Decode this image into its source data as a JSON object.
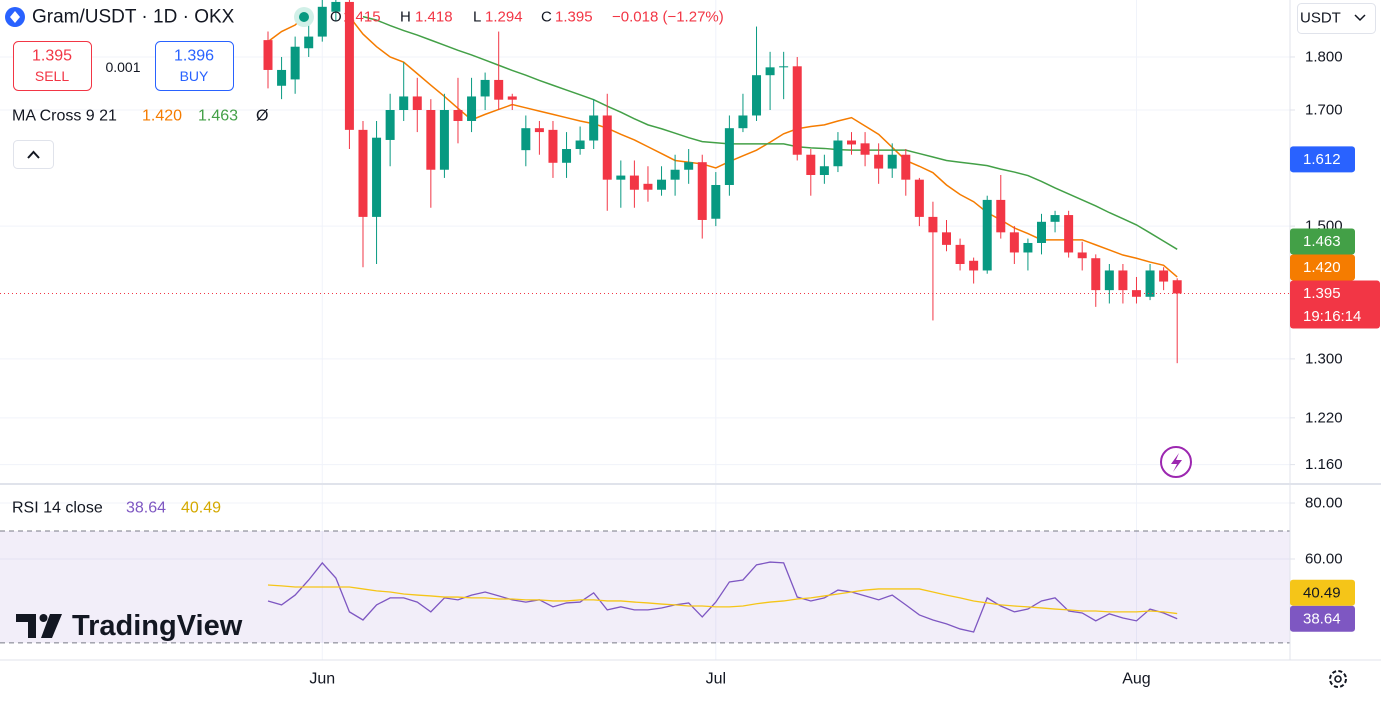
{
  "header": {
    "symbol": "Gram/USDT · 1D · OKX",
    "ohlc": [
      {
        "key": "O",
        "value": "1.415"
      },
      {
        "key": "H",
        "value": "1.418"
      },
      {
        "key": "L",
        "value": "1.294"
      },
      {
        "key": "C",
        "value": "1.395"
      }
    ],
    "change": "−0.018 (−1.27%)"
  },
  "trade": {
    "sell_price": "1.395",
    "sell": "SELL",
    "spread": "0.001",
    "buy_price": "1.396",
    "buy": "BUY"
  },
  "currency": "USDT",
  "branding": "TradingView",
  "chart_data": [
    {
      "type": "candlestick",
      "log_scale": true,
      "grid": true,
      "indicator_label": "MA Cross 9 21",
      "indicator_suffix": "Ø",
      "up_color": "#089981",
      "down_color": "#f23645",
      "categories": [
        null,
        null,
        null,
        null,
        "Jun",
        null,
        null,
        null,
        null,
        null,
        null,
        null,
        null,
        null,
        null,
        null,
        null,
        null,
        null,
        null,
        null,
        null,
        null,
        null,
        null,
        null,
        null,
        null,
        null,
        null,
        null,
        null,
        null,
        "Jul",
        null,
        null,
        null,
        null,
        null,
        null,
        null,
        null,
        null,
        null,
        null,
        null,
        null,
        null,
        null,
        null,
        null,
        null,
        null,
        null,
        null,
        null,
        null,
        null,
        null,
        null,
        null,
        null,
        null,
        null,
        "Aug",
        null,
        null,
        null
      ],
      "open": [
        1.833,
        1.745,
        1.757,
        1.817,
        1.84,
        1.89,
        1.91,
        1.664,
        1.515,
        1.646,
        1.7,
        1.725,
        1.7,
        1.594,
        1.7,
        1.68,
        1.725,
        1.756,
        1.725,
        1.628,
        1.667,
        1.664,
        1.606,
        1.63,
        1.645,
        1.69,
        1.577,
        1.584,
        1.57,
        1.56,
        1.577,
        1.594,
        1.607,
        1.512,
        1.568,
        1.667,
        1.69,
        1.765,
        1.78,
        1.782,
        1.62,
        1.585,
        1.6,
        1.645,
        1.64,
        1.62,
        1.596,
        1.62,
        1.577,
        1.515,
        1.49,
        1.47,
        1.445,
        1.43,
        1.543,
        1.49,
        1.458,
        1.473,
        1.507,
        1.518,
        1.458,
        1.449,
        1.4,
        1.43,
        1.4,
        1.39,
        1.43,
        1.415
      ],
      "high": [
        1.85,
        1.8,
        1.84,
        1.87,
        1.92,
        1.93,
        1.93,
        1.68,
        1.68,
        1.73,
        1.79,
        1.76,
        1.72,
        1.73,
        1.76,
        1.76,
        1.77,
        1.85,
        1.73,
        1.69,
        1.68,
        1.68,
        1.66,
        1.67,
        1.72,
        1.73,
        1.61,
        1.61,
        1.6,
        1.6,
        1.62,
        1.63,
        1.62,
        1.59,
        1.69,
        1.73,
        1.86,
        1.81,
        1.81,
        1.8,
        1.63,
        1.62,
        1.66,
        1.66,
        1.66,
        1.64,
        1.64,
        1.63,
        1.58,
        1.54,
        1.51,
        1.48,
        1.45,
        1.55,
        1.585,
        1.5,
        1.48,
        1.52,
        1.525,
        1.525,
        1.475,
        1.455,
        1.44,
        1.44,
        1.42,
        1.44,
        1.435,
        1.418
      ],
      "low": [
        1.74,
        1.72,
        1.73,
        1.8,
        1.83,
        1.87,
        1.63,
        1.435,
        1.44,
        1.6,
        1.68,
        1.66,
        1.53,
        1.58,
        1.64,
        1.66,
        1.7,
        1.7,
        1.7,
        1.6,
        1.62,
        1.58,
        1.58,
        1.62,
        1.63,
        1.525,
        1.53,
        1.53,
        1.54,
        1.55,
        1.55,
        1.57,
        1.48,
        1.5,
        1.55,
        1.66,
        1.68,
        1.7,
        1.72,
        1.61,
        1.55,
        1.57,
        1.59,
        1.62,
        1.6,
        1.57,
        1.58,
        1.55,
        1.5,
        1.355,
        1.46,
        1.43,
        1.41,
        1.425,
        1.48,
        1.44,
        1.43,
        1.455,
        1.49,
        1.45,
        1.43,
        1.375,
        1.38,
        1.38,
        1.38,
        1.385,
        1.4,
        1.294
      ],
      "close": [
        1.775,
        1.775,
        1.82,
        1.84,
        1.9,
        1.91,
        1.664,
        1.515,
        1.65,
        1.7,
        1.725,
        1.7,
        1.594,
        1.7,
        1.68,
        1.725,
        1.756,
        1.719,
        1.719,
        1.667,
        1.66,
        1.606,
        1.63,
        1.645,
        1.69,
        1.577,
        1.584,
        1.56,
        1.56,
        1.577,
        1.594,
        1.607,
        1.51,
        1.568,
        1.667,
        1.69,
        1.765,
        1.78,
        1.782,
        1.62,
        1.585,
        1.6,
        1.645,
        1.638,
        1.62,
        1.596,
        1.62,
        1.577,
        1.515,
        1.49,
        1.47,
        1.44,
        1.43,
        1.543,
        1.49,
        1.458,
        1.473,
        1.507,
        1.518,
        1.458,
        1.449,
        1.4,
        1.43,
        1.4,
        1.39,
        1.43,
        1.413,
        1.395
      ],
      "series": [
        {
          "color": "#f57c00",
          "values": [
            1.83,
            1.85,
            1.863,
            1.89,
            null,
            null,
            1.88,
            1.845,
            1.82,
            1.8,
            1.79,
            1.768,
            1.746,
            1.725,
            1.703,
            1.682,
            1.692,
            1.701,
            1.71,
            1.704,
            1.698,
            1.692,
            1.686,
            1.68,
            1.675,
            1.667,
            1.656,
            1.646,
            1.634,
            1.622,
            1.61,
            1.607,
            1.604,
            1.597,
            1.608,
            1.618,
            1.628,
            1.642,
            1.657,
            1.666,
            1.67,
            1.673,
            1.68,
            1.686,
            1.671,
            1.656,
            1.633,
            1.61,
            1.6,
            1.589,
            1.568,
            1.552,
            1.54,
            1.522,
            1.51,
            1.497,
            1.488,
            1.478,
            1.478,
            1.478,
            1.478,
            1.47,
            1.462,
            1.454,
            1.449,
            1.443,
            1.438,
            1.42
          ]
        },
        {
          "color": "#43a047",
          "values": [
            null,
            null,
            null,
            null,
            null,
            null,
            null,
            1.88,
            1.873,
            1.862,
            1.852,
            1.843,
            1.833,
            1.823,
            1.813,
            1.804,
            1.794,
            1.784,
            1.774,
            1.765,
            1.755,
            1.746,
            1.737,
            1.728,
            1.719,
            1.707,
            1.696,
            1.684,
            1.673,
            1.666,
            1.658,
            1.65,
            1.643,
            1.641,
            1.639,
            1.639,
            1.639,
            1.639,
            1.639,
            1.634,
            1.632,
            1.631,
            1.629,
            1.628,
            1.628,
            1.628,
            1.628,
            1.628,
            1.622,
            1.616,
            1.61,
            1.607,
            1.604,
            1.601,
            1.595,
            1.59,
            1.584,
            1.574,
            1.563,
            1.553,
            1.543,
            1.533,
            1.522,
            1.512,
            1.502,
            1.489,
            1.476,
            1.463
          ]
        }
      ],
      "ylim": [
        1.136,
        1.914
      ],
      "yticks": [
        {
          "value": 1.8,
          "label": "1.800"
        },
        {
          "value": 1.7,
          "label": "1.700"
        },
        {
          "value": 1.5,
          "label": "1.500"
        },
        {
          "value": 1.3,
          "label": "1.300"
        },
        {
          "value": 1.22,
          "label": "1.220"
        },
        {
          "value": 1.16,
          "label": "1.160"
        }
      ],
      "price_tags": [
        {
          "value": 1.612,
          "label": "1.612",
          "color": "#2962ff"
        },
        {
          "value": 1.463,
          "label": "1.463",
          "color": "#43a047"
        },
        {
          "value": 1.42,
          "label": "1.420",
          "color": "#f57c00"
        },
        {
          "value": 1.395,
          "label": "1.395",
          "color": "#f23645",
          "countdown": "19:16:14"
        }
      ]
    },
    {
      "type": "line",
      "label": "RSI 14 close",
      "grid": true,
      "band_color": "#7e57c2",
      "bands": [
        70,
        30
      ],
      "series": [
        {
          "color": "#7e57c2",
          "values": [
            45.0,
            43.6,
            47.1,
            52.5,
            58.6,
            53.2,
            41.1,
            38.2,
            43.6,
            46.1,
            46.1,
            44.6,
            41.1,
            46.1,
            45.4,
            47.1,
            48.2,
            46.8,
            45.4,
            44.6,
            45.4,
            42.9,
            44.3,
            44.6,
            47.9,
            41.8,
            42.9,
            41.8,
            41.8,
            42.5,
            43.6,
            44.3,
            39.3,
            44.6,
            51.8,
            52.5,
            57.9,
            58.9,
            58.6,
            46.4,
            45.0,
            46.1,
            48.9,
            48.2,
            46.8,
            45.4,
            47.1,
            43.6,
            40.0,
            38.2,
            36.8,
            35.0,
            33.9,
            46.1,
            43.2,
            41.1,
            42.1,
            45.0,
            46.1,
            41.4,
            40.7,
            37.9,
            40.4,
            38.9,
            37.9,
            42.1,
            40.7,
            38.64
          ]
        },
        {
          "color": "#f5c518",
          "values": [
            50.7,
            50.4,
            50.0,
            50.0,
            50.0,
            50.0,
            50.0,
            49.3,
            48.6,
            48.2,
            47.5,
            47.1,
            46.8,
            46.4,
            46.4,
            46.1,
            46.1,
            45.7,
            45.7,
            45.4,
            45.4,
            45.0,
            45.0,
            45.4,
            45.4,
            45.0,
            45.0,
            44.6,
            44.3,
            43.9,
            43.6,
            43.2,
            43.2,
            42.9,
            42.9,
            43.2,
            44.0,
            44.6,
            45.0,
            45.7,
            46.1,
            46.8,
            47.5,
            48.2,
            48.9,
            49.3,
            49.3,
            49.3,
            49.3,
            48.2,
            47.1,
            46.1,
            45.0,
            44.3,
            43.6,
            43.2,
            42.9,
            42.5,
            42.1,
            41.8,
            41.4,
            41.4,
            41.1,
            41.1,
            41.1,
            41.4,
            41.1,
            40.49
          ]
        }
      ],
      "ylim": [
        23.9,
        86.8
      ],
      "yticks": [
        {
          "value": 80,
          "label": "80.00"
        },
        {
          "value": 60,
          "label": "60.00"
        }
      ]
    }
  ]
}
